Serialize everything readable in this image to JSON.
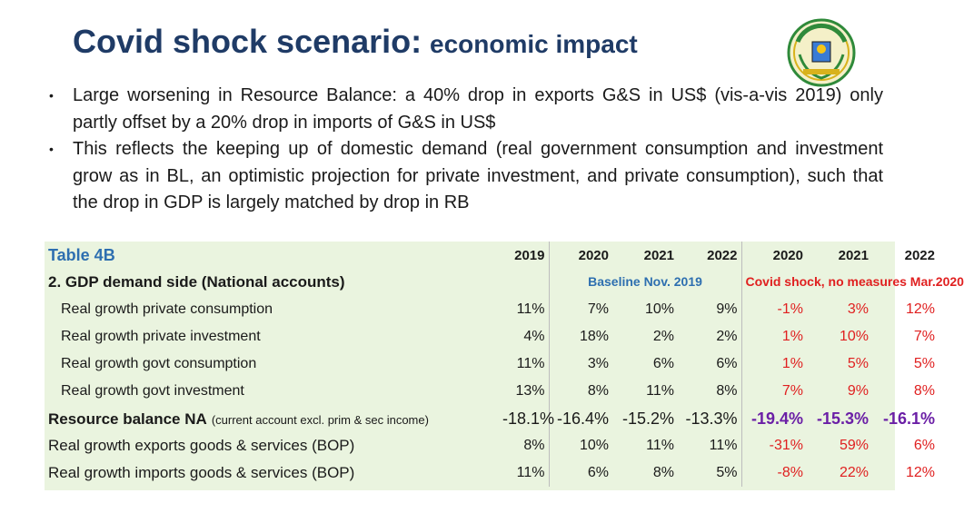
{
  "header": {
    "title_main": "Covid shock scenario:",
    "title_sub": "economic impact",
    "emblem_icon": "coat-of-arms-emblem"
  },
  "bullets": [
    "Large worsening in Resource Balance: a 40% drop in exports G&S in US$ (vis-a-vis 2019) only partly offset by a 20% drop in imports of G&S in US$",
    "This reflects the keeping up of domestic demand (real government consumption and investment grow as in BL, an optimistic projection for private investment, and private consumption), such that the drop in GDP is largely matched by drop in RB"
  ],
  "table": {
    "title": "Table 4B",
    "years": [
      "2019",
      "2020",
      "2021",
      "2022",
      "2020",
      "2021",
      "2022"
    ],
    "section": "2. GDP demand side (National accounts)",
    "baseline_label": "Baseline Nov. 2019",
    "covid_label": "Covid shock, no measures Mar.2020",
    "rows": [
      {
        "label": "Real growth private consumption",
        "values": [
          "11%",
          "7%",
          "10%",
          "9%",
          "-1%",
          "3%",
          "12%"
        ]
      },
      {
        "label": "Real growth private investment",
        "values": [
          "4%",
          "18%",
          "2%",
          "2%",
          "1%",
          "10%",
          "7%"
        ]
      },
      {
        "label": "Real growth govt consumption",
        "values": [
          "11%",
          "3%",
          "6%",
          "6%",
          "1%",
          "5%",
          "5%"
        ]
      },
      {
        "label": "Real growth govt investment",
        "values": [
          "13%",
          "8%",
          "11%",
          "8%",
          "7%",
          "9%",
          "8%"
        ]
      }
    ],
    "resource_balance": {
      "label": "Resource balance NA",
      "note": "(current account excl. prim & sec income)",
      "values": [
        "-18.1%",
        "-16.4%",
        "-15.2%",
        "-13.3%",
        "-19.4%",
        "-15.3%",
        "-16.1%"
      ]
    },
    "bottom_rows": [
      {
        "label": "Real growth exports goods & services (BOP)",
        "values": [
          "8%",
          "10%",
          "11%",
          "11%",
          "-31%",
          "59%",
          "6%"
        ]
      },
      {
        "label": "Real growth imports goods & services (BOP)",
        "values": [
          "11%",
          "6%",
          "8%",
          "5%",
          "-8%",
          "22%",
          "12%"
        ]
      }
    ]
  },
  "colors": {
    "title": "#1f3b66",
    "table_bg": "#eaf4df",
    "blue_header": "#2e6fb0",
    "red": "#e02020",
    "purple": "#6b1fa6"
  }
}
